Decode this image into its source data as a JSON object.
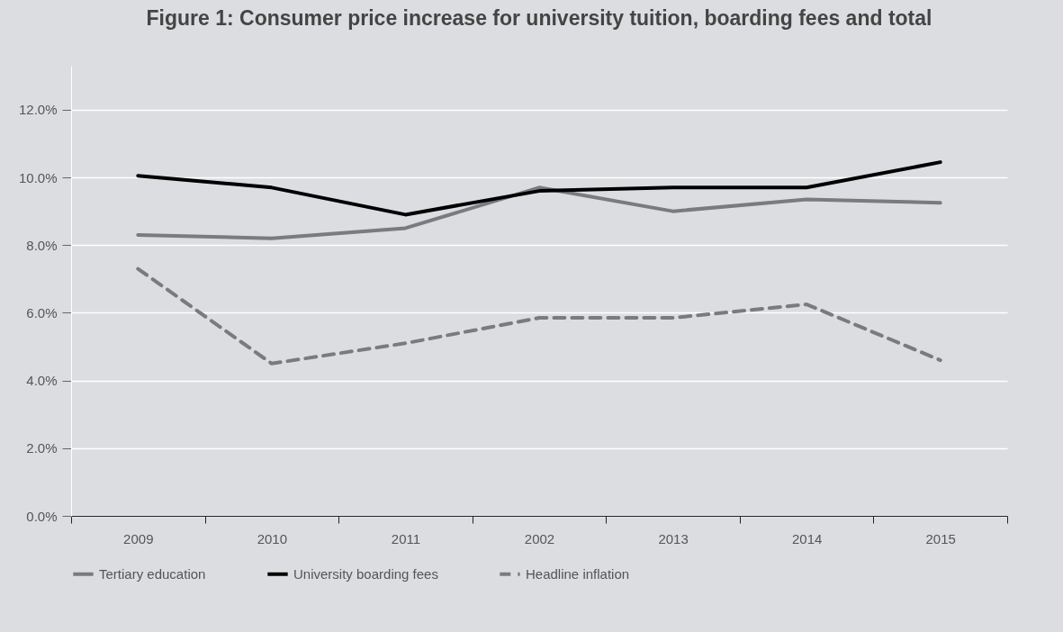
{
  "chart_data": {
    "type": "line",
    "title": "Figure 1: Consumer price increase for university tuition, boarding fees and total",
    "categories": [
      "2009",
      "2010",
      "2011",
      "2002",
      "2013",
      "2014",
      "2015"
    ],
    "series": [
      {
        "name": "Tertiary education",
        "color": "#7a7b7e",
        "line_style": "solid",
        "values": [
          8.3,
          8.2,
          8.5,
          9.7,
          9.0,
          9.35,
          9.25
        ]
      },
      {
        "name": "University boarding fees",
        "color": "#000000",
        "line_style": "solid",
        "values": [
          10.05,
          9.7,
          8.9,
          9.6,
          9.7,
          9.7,
          10.45
        ]
      },
      {
        "name": "Headline inflation",
        "color": "#7a7b7e",
        "line_style": "dashed",
        "values": [
          7.3,
          4.5,
          5.1,
          5.85,
          5.85,
          6.25,
          4.6
        ]
      }
    ],
    "ylim": [
      0,
      13.3
    ],
    "yticks": [
      {
        "value": 0,
        "label": "0.0%"
      },
      {
        "value": 2,
        "label": "2.0%"
      },
      {
        "value": 4,
        "label": "4.0%"
      },
      {
        "value": 6,
        "label": "6.0%"
      },
      {
        "value": 8,
        "label": "8.0%"
      },
      {
        "value": 10,
        "label": "10.0%"
      },
      {
        "value": 12,
        "label": "12.0%"
      }
    ],
    "grid": "y",
    "legend": "bottom",
    "marker": "none"
  }
}
